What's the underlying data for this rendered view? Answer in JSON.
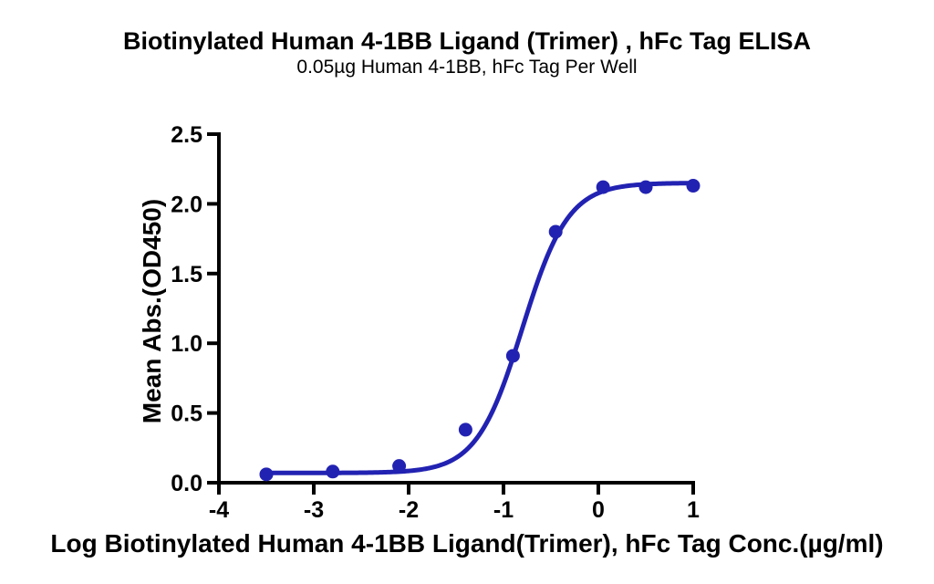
{
  "page": {
    "title": "Biotinylated Human 4-1BB Ligand (Trimer) , hFc Tag ELISA",
    "subtitle": "0.05µg Human 4-1BB, hFc Tag Per Well"
  },
  "chart_data": {
    "type": "scatter",
    "title": "Biotinylated Human 4-1BB Ligand (Trimer) , hFc Tag ELISA",
    "subtitle": "0.05µg Human 4-1BB, hFc Tag Per Well",
    "xlabel": "Log Biotinylated Human 4-1BB Ligand(Trimer), hFc Tag Conc.(µg/ml)",
    "ylabel": "Mean Abs.(OD450)",
    "xlim": [
      -4,
      1
    ],
    "ylim": [
      0,
      2.5
    ],
    "x_ticks": [
      -4,
      -3,
      -2,
      -1,
      0,
      1
    ],
    "x_tick_labels": [
      "-4",
      "-3",
      "-2",
      "-1",
      "0",
      "1"
    ],
    "y_ticks": [
      0,
      0.5,
      1,
      1.5,
      2,
      2.5
    ],
    "y_tick_labels": [
      "0.0",
      "0.5",
      "1.0",
      "1.5",
      "2.0",
      "2.5"
    ],
    "grid": false,
    "legend": "none",
    "series": [
      {
        "name": "Biotinylated Human 4-1BB Ligand (Trimer), hFc Tag",
        "marker": "circle",
        "marker_color": "#2222b2",
        "points": [
          {
            "x": -3.5,
            "y": 0.06
          },
          {
            "x": -2.8,
            "y": 0.08
          },
          {
            "x": -2.1,
            "y": 0.12
          },
          {
            "x": -1.4,
            "y": 0.38
          },
          {
            "x": -0.9,
            "y": 0.91
          },
          {
            "x": -0.45,
            "y": 1.8
          },
          {
            "x": 0.05,
            "y": 2.12
          },
          {
            "x": 0.5,
            "y": 2.12
          },
          {
            "x": 1.0,
            "y": 2.13
          }
        ]
      }
    ],
    "curve_fit": {
      "model": "4PL sigmoid",
      "bottom": 0.07,
      "top": 2.15,
      "log_ec50": -0.8,
      "hill_slope": 1.8,
      "x_range": [
        -3.5,
        1.0
      ],
      "color": "#2222b2"
    },
    "axis_color": "#000000"
  }
}
